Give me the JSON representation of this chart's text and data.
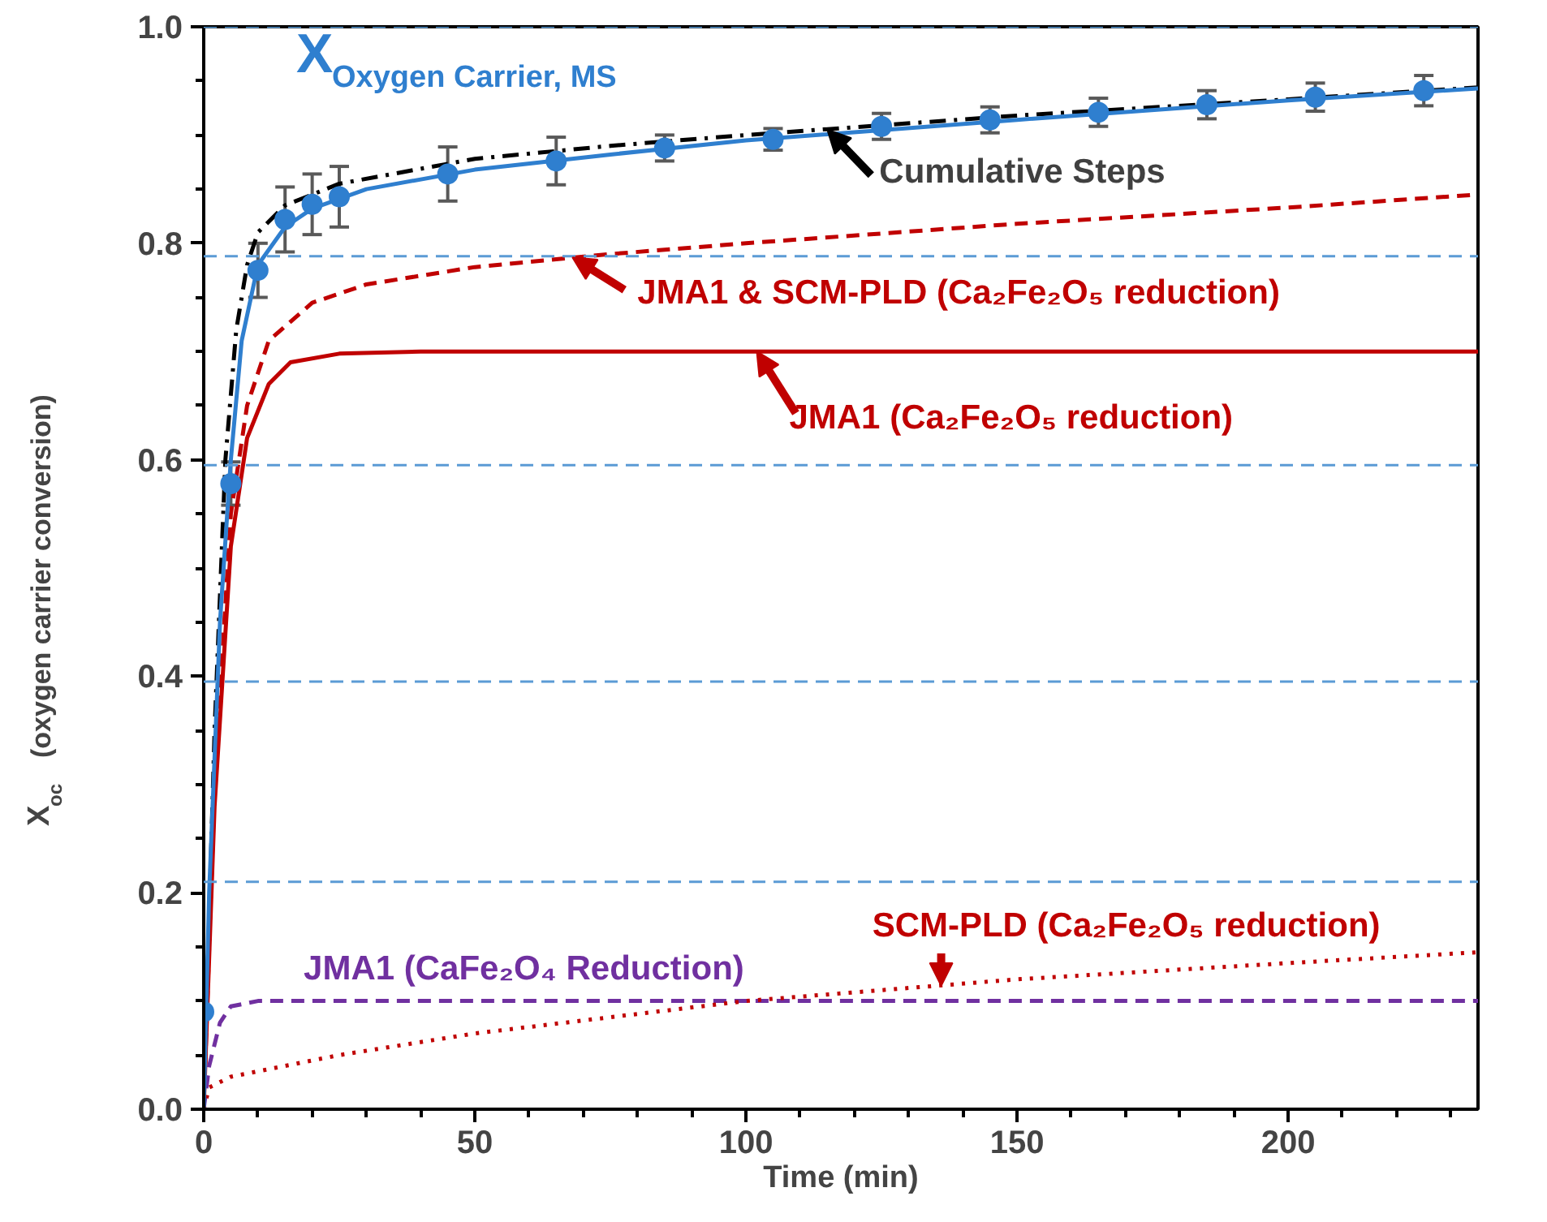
{
  "chart_data": {
    "type": "line",
    "xlabel": "Time (min)",
    "ylabel": "X$_{oc}$  (oxygen carrier conversion)",
    "xlim": [
      0,
      235
    ],
    "ylim": [
      0.0,
      1.0
    ],
    "xticks": [
      0,
      50,
      100,
      150,
      200
    ],
    "yticks": [
      {
        "value": 0,
        "label": "0.0"
      },
      {
        "value": 0.2,
        "label": "0.2"
      },
      {
        "value": 0.4,
        "label": "0.4"
      },
      {
        "value": 0.6,
        "label": "0.6"
      },
      {
        "value": 0.8,
        "label": "0.8"
      },
      {
        "value": 1.0,
        "label": "1.0"
      }
    ],
    "grid": false,
    "series": [
      {
        "color": "#000000",
        "line_style": "dashdot",
        "marker": "none",
        "x": [
          0,
          2,
          4,
          6,
          8,
          10,
          15,
          25,
          50,
          75,
          100,
          150,
          200,
          235
        ],
        "values": [
          0.0,
          0.35,
          0.6,
          0.72,
          0.78,
          0.81,
          0.835,
          0.855,
          0.878,
          0.89,
          0.9,
          0.918,
          0.933,
          0.944
        ]
      },
      {
        "color": "#c00000",
        "line_style": "dashed",
        "marker": "none",
        "x": [
          0,
          2,
          5,
          8,
          12,
          20,
          30,
          50,
          75,
          100,
          150,
          200,
          235
        ],
        "values": [
          0.0,
          0.3,
          0.55,
          0.65,
          0.71,
          0.745,
          0.762,
          0.778,
          0.79,
          0.8,
          0.818,
          0.833,
          0.845
        ]
      },
      {
        "color": "#c00000",
        "line_style": "solid",
        "marker": "none",
        "x": [
          0,
          2,
          5,
          8,
          12,
          16,
          25,
          40,
          235
        ],
        "values": [
          0.0,
          0.28,
          0.52,
          0.62,
          0.67,
          0.69,
          0.698,
          0.7,
          0.7
        ]
      },
      {
        "color": "#7030a0",
        "line_style": "dashed",
        "marker": "none",
        "x": [
          0,
          1,
          3,
          5,
          10,
          235
        ],
        "values": [
          0.0,
          0.04,
          0.08,
          0.095,
          0.1,
          0.1
        ]
      },
      {
        "color": "#c00000",
        "line_style": "dotted",
        "marker": "none",
        "x": [
          0,
          1,
          5,
          25,
          50,
          75,
          100,
          125,
          150,
          200,
          235
        ],
        "values": [
          0.0,
          0.02,
          0.03,
          0.05,
          0.07,
          0.085,
          0.1,
          0.11,
          0.12,
          0.135,
          0.145
        ]
      },
      {
        "color": "#2f7fcf",
        "line_style": "solid",
        "marker": "none",
        "x": [
          0,
          1,
          3,
          5,
          7,
          10,
          15,
          20,
          30,
          50,
          75,
          100,
          150,
          200,
          235
        ],
        "values": [
          0.0,
          0.2,
          0.45,
          0.6,
          0.71,
          0.78,
          0.815,
          0.832,
          0.85,
          0.868,
          0.882,
          0.895,
          0.914,
          0.932,
          0.943
        ]
      },
      {
        "type": "scatter",
        "color": "#2f7fcf",
        "marker": "circle",
        "x": [
          0,
          5,
          10,
          15,
          20,
          25,
          45,
          65,
          85,
          105,
          125,
          145,
          165,
          185,
          205,
          225
        ],
        "values": [
          0.09,
          0.578,
          0.775,
          0.822,
          0.836,
          0.843,
          0.864,
          0.876,
          0.888,
          0.896,
          0.908,
          0.914,
          0.921,
          0.928,
          0.935,
          0.941
        ],
        "errors": [
          null,
          0.02,
          0.025,
          0.03,
          0.028,
          0.028,
          0.025,
          0.022,
          0.012,
          0.01,
          0.012,
          0.012,
          0.013,
          0.013,
          0.013,
          0.014
        ]
      }
    ],
    "ref_lines": [
      {
        "axis": "y",
        "value": 1.0,
        "color": "#5b9bd5",
        "line_style": "dashed"
      },
      {
        "axis": "y",
        "value": 0.788,
        "color": "#5b9bd5",
        "line_style": "dashed"
      },
      {
        "axis": "y",
        "value": 0.595,
        "color": "#5b9bd5",
        "line_style": "dashed"
      },
      {
        "axis": "y",
        "value": 0.395,
        "color": "#5b9bd5",
        "line_style": "dashed"
      },
      {
        "axis": "y",
        "value": 0.21,
        "color": "#5b9bd5",
        "line_style": "dashed"
      }
    ],
    "annotations": [
      {
        "text": "X$_{Oxygen Carrier, MS}$",
        "x": 50,
        "y": 0.868
      },
      {
        "text": "Cumulative Steps",
        "x": 115,
        "y": 0.905
      },
      {
        "text": "JMA1 & SCM-PLD (Ca₂Fe₂O₅ reduction)",
        "x": 68,
        "y": 0.787
      },
      {
        "text": "JMA1 (Ca₂Fe₂O₅ reduction)",
        "x": 102,
        "y": 0.7
      },
      {
        "text": "SCM-PLD (Ca₂Fe₂O₅ reduction)",
        "x": 136,
        "y": 0.114
      },
      {
        "text": "JMA1 (CaFe₂O₄ Reduction)",
        "x": 77,
        "y": 0.1
      }
    ]
  }
}
